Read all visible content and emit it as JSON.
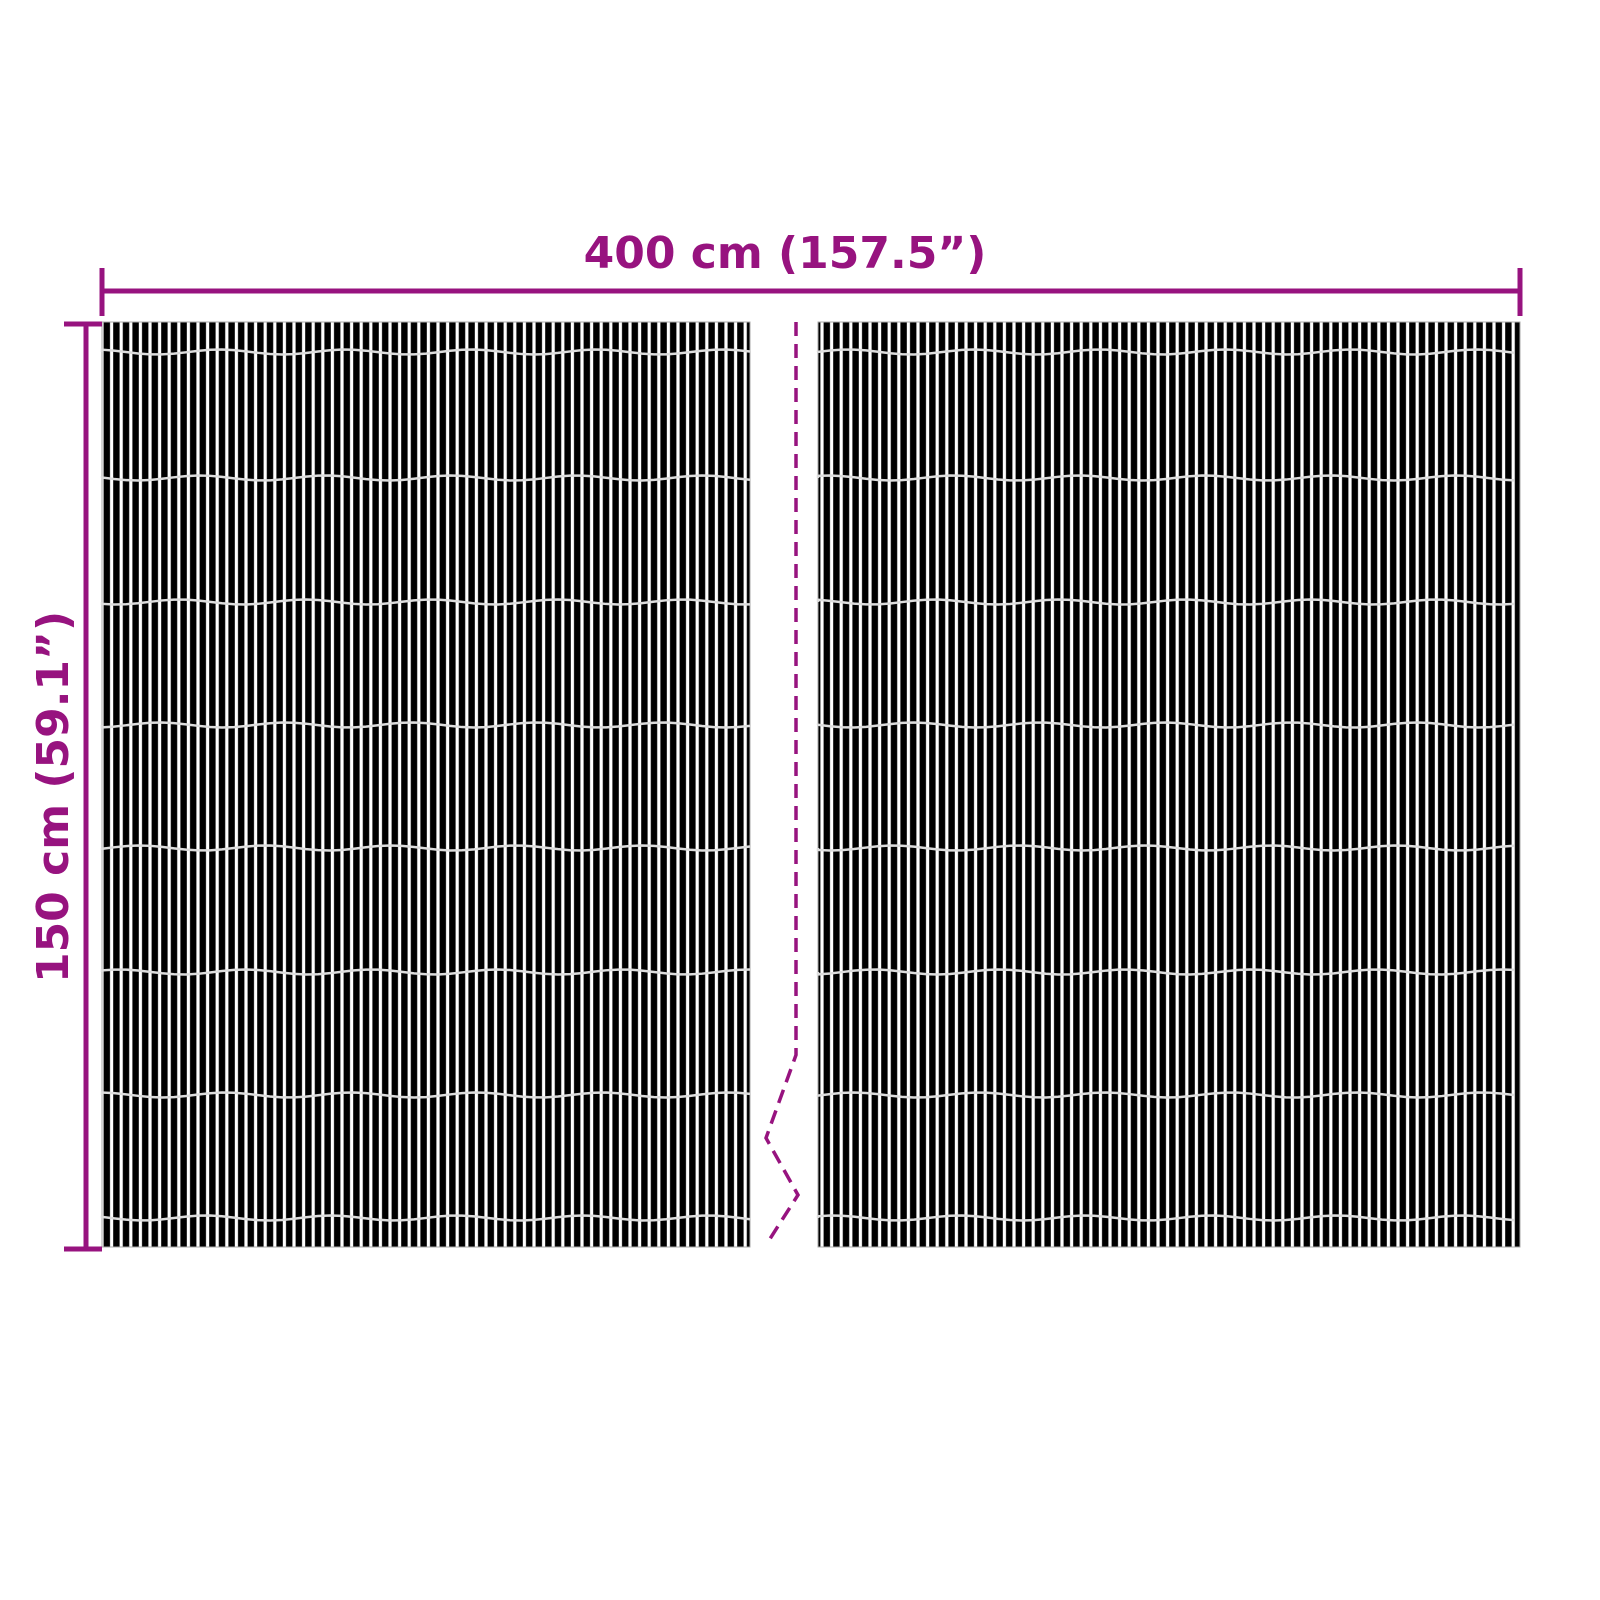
{
  "dimensions": {
    "width_label": "400 cm (157.5”)",
    "height_label": "150 cm (59.1”)"
  },
  "colors": {
    "accent": "#97137f",
    "slat": "#000000",
    "gap": "#ffffff"
  },
  "panels": [
    "left-screen-panel",
    "right-screen-panel"
  ]
}
